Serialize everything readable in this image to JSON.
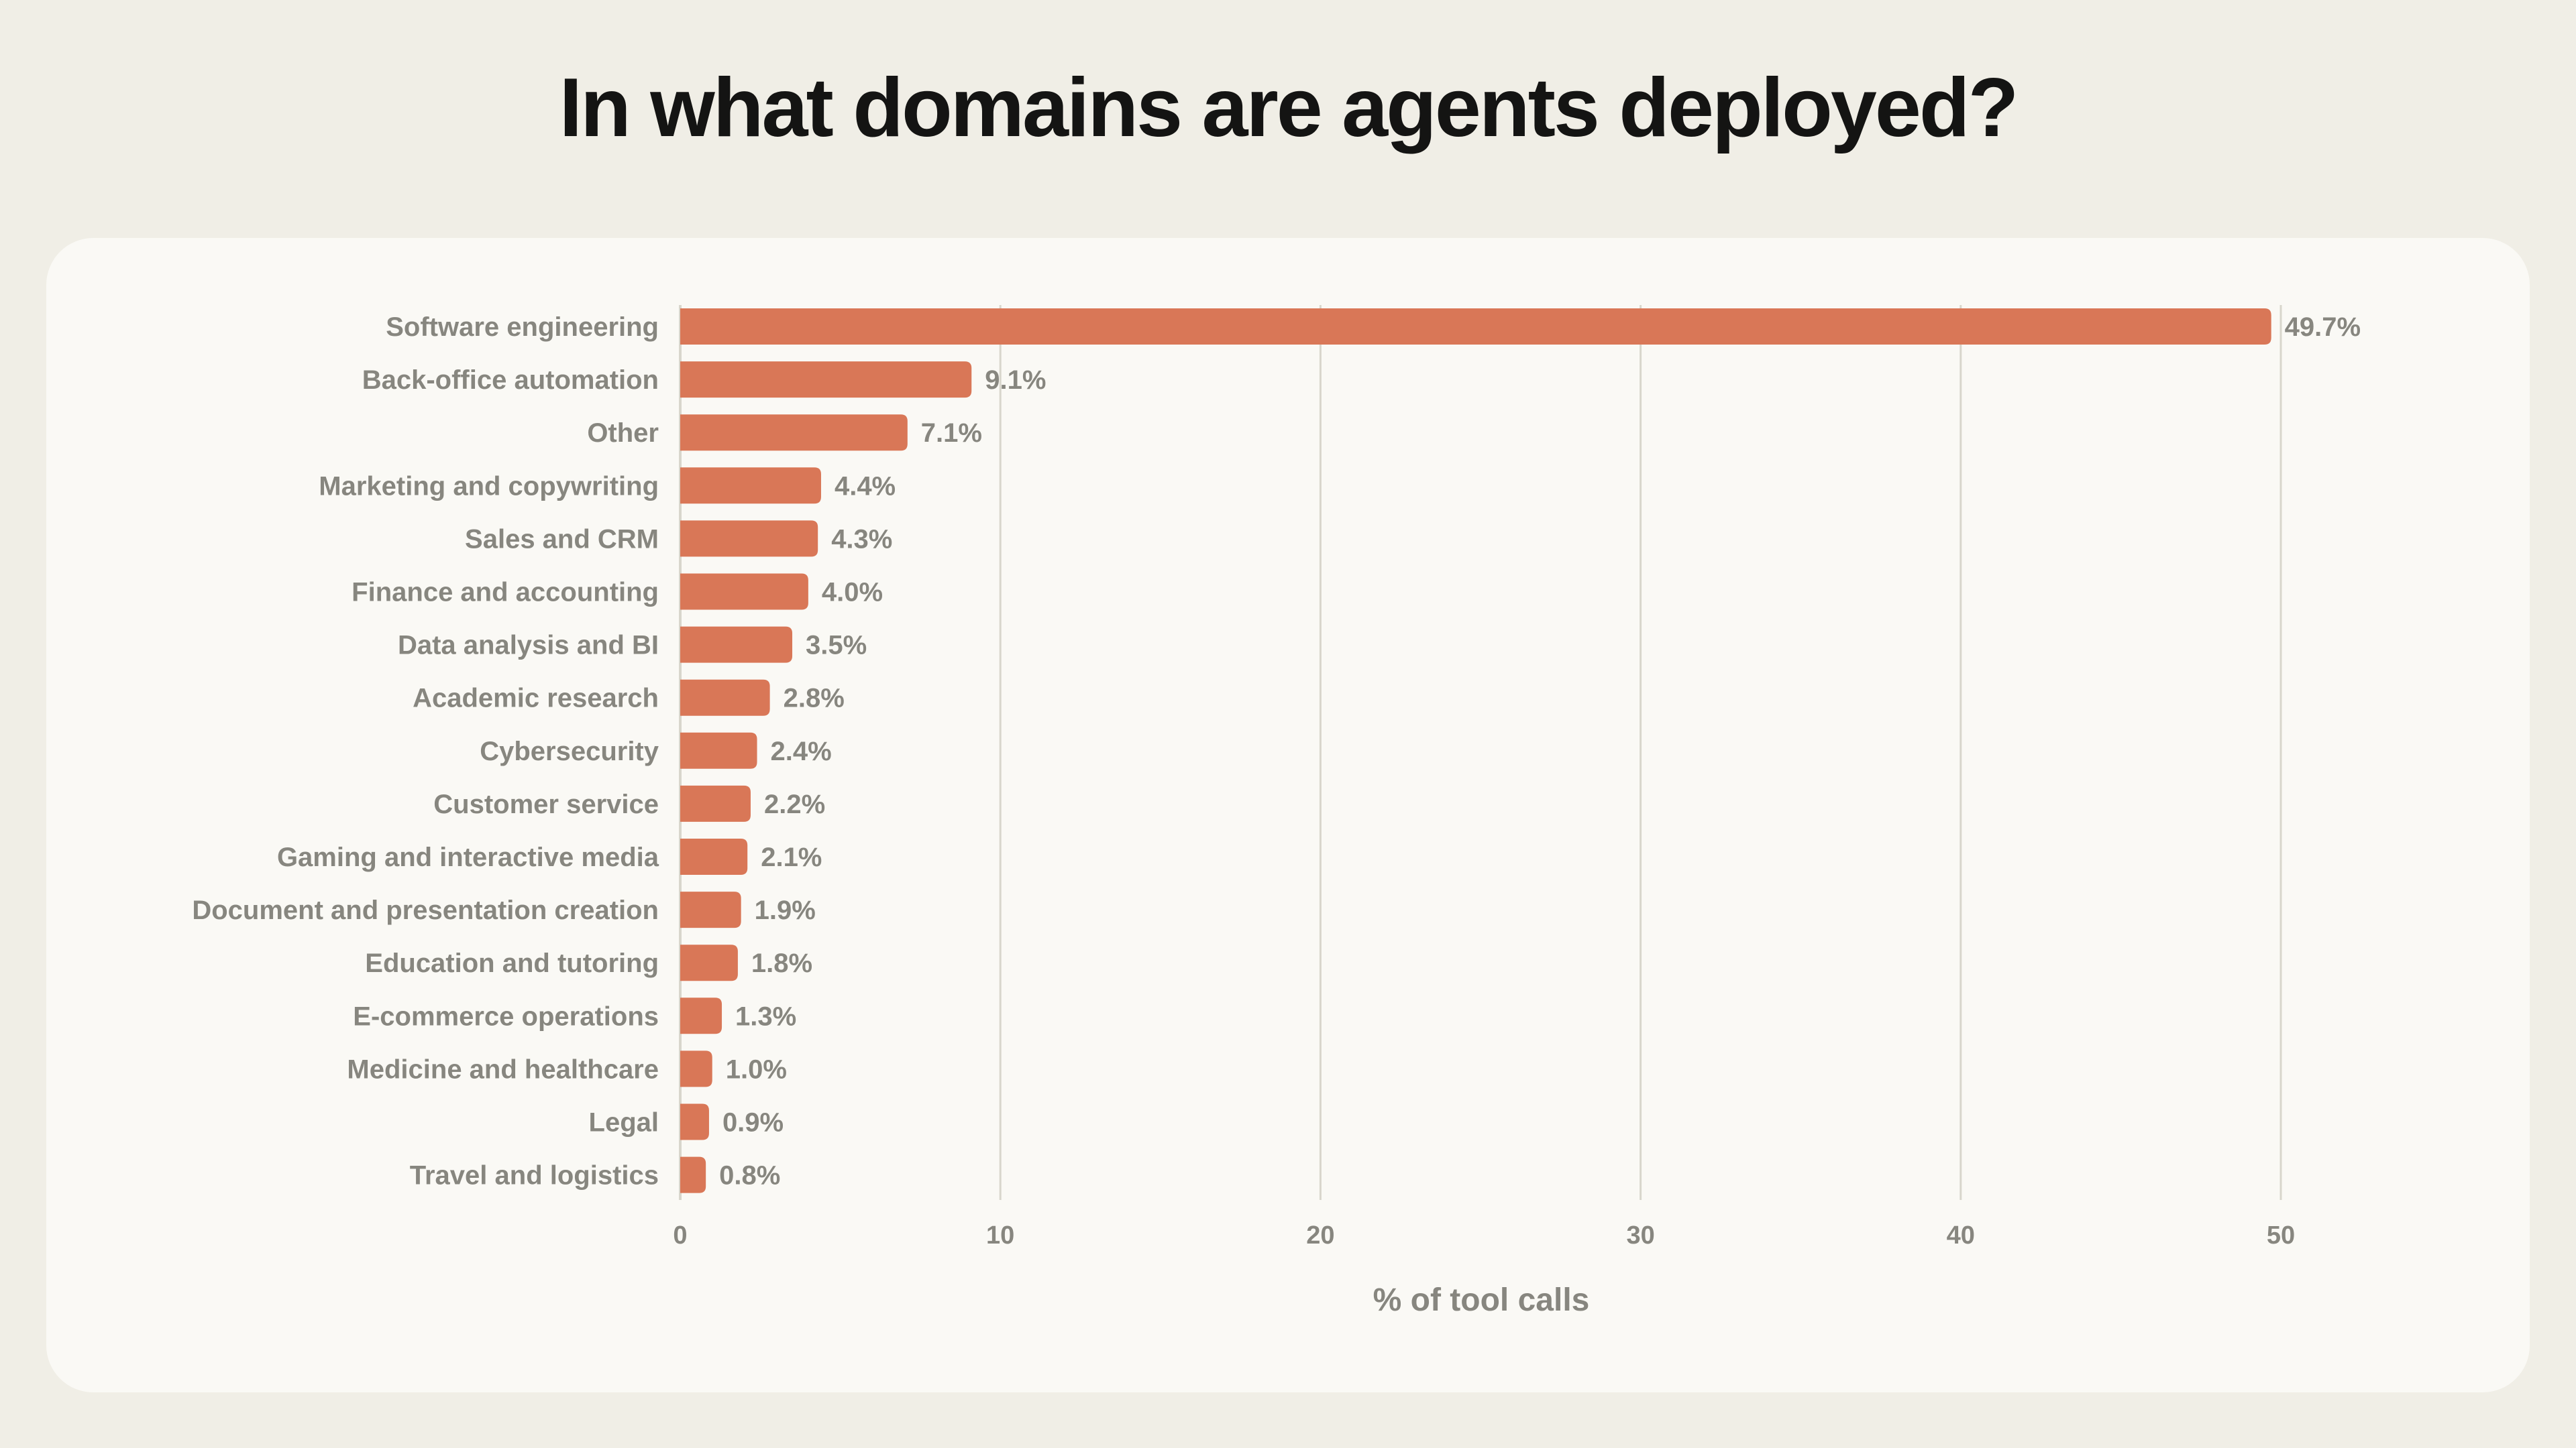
{
  "chart_data": {
    "type": "bar",
    "orientation": "horizontal",
    "title": "In what domains are agents deployed?",
    "xlabel": "% of tool calls",
    "ylabel": "",
    "xlim": [
      0,
      50
    ],
    "xticks": [
      0,
      10,
      20,
      30,
      40,
      50
    ],
    "grid": true,
    "categories": [
      "Software engineering",
      "Back-office automation",
      "Other",
      "Marketing and copywriting",
      "Sales and CRM",
      "Finance and accounting",
      "Data analysis and BI",
      "Academic research",
      "Cybersecurity",
      "Customer service",
      "Gaming and interactive media",
      "Document and presentation creation",
      "Education and tutoring",
      "E-commerce operations",
      "Medicine and healthcare",
      "Legal",
      "Travel and logistics"
    ],
    "values": [
      49.7,
      9.1,
      7.1,
      4.4,
      4.3,
      4.0,
      3.5,
      2.8,
      2.4,
      2.2,
      2.1,
      1.9,
      1.8,
      1.3,
      1.0,
      0.9,
      0.8
    ],
    "value_labels": [
      "49.7%",
      "9.1%",
      "7.1%",
      "4.4%",
      "4.3%",
      "4.0%",
      "3.5%",
      "2.8%",
      "2.4%",
      "2.2%",
      "2.1%",
      "1.9%",
      "1.8%",
      "1.3%",
      "1.0%",
      "0.9%",
      "0.8%"
    ],
    "colors": {
      "bar": "#D97757",
      "text": "#87867F",
      "grid": "#D8D6CC",
      "card": "#FAF9F5",
      "background": "#F0EEE6"
    }
  }
}
